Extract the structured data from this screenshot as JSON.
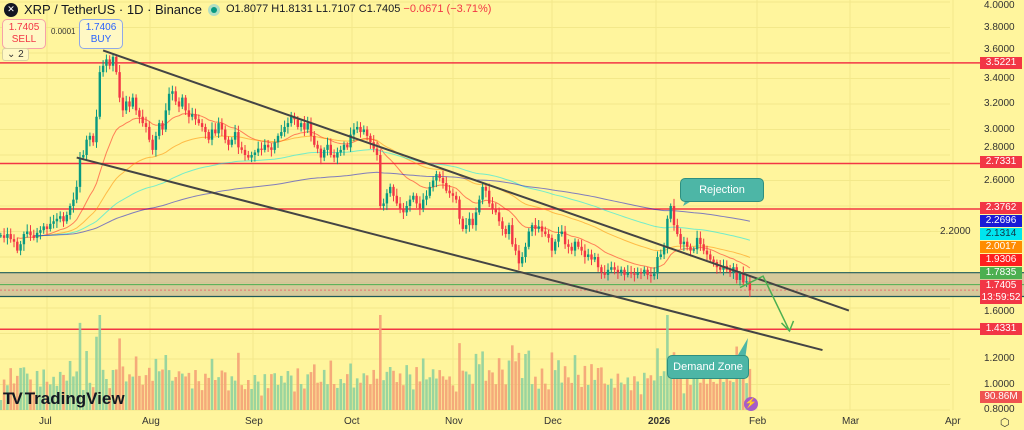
{
  "header": {
    "symbol": "XRP / TetherUS · 1D · Binance",
    "open": "O1.8077",
    "high": "H1.8131",
    "low": "L1.7107",
    "close": "C1.7405",
    "change": "−0.0671 (−3.71%)"
  },
  "trade": {
    "sell_price": "1.7405",
    "sell_label": "SELL",
    "spread": "0.0001",
    "buy_price": "1.7406",
    "buy_label": "BUY"
  },
  "indicators_toggle": "2",
  "branding": "TradingView",
  "annotations": {
    "rejection": "Rejection",
    "demand_zone": "Demand Zone"
  },
  "colors": {
    "up": "#089981",
    "down": "#f23645",
    "background": "#fff59d",
    "levels": "#f23645",
    "zone": "#c8b99a",
    "callout": "#4db6a6"
  },
  "chart_data": {
    "type": "candlestick",
    "title": "XRP / TetherUS · 1D · Binance",
    "start_date": "2025-06-17",
    "interval": "1D",
    "closes": [
      2.17,
      2.15,
      2.18,
      2.14,
      2.12,
      2.05,
      2.1,
      2.18,
      2.2,
      2.17,
      2.15,
      2.19,
      2.21,
      2.24,
      2.22,
      2.26,
      2.28,
      2.3,
      2.32,
      2.28,
      2.33,
      2.4,
      2.45,
      2.55,
      2.78,
      2.8,
      2.92,
      2.95,
      2.9,
      3.1,
      3.45,
      3.5,
      3.55,
      3.5,
      3.57,
      3.45,
      3.25,
      3.15,
      3.22,
      3.18,
      3.25,
      3.15,
      3.1,
      3.05,
      3.02,
      2.92,
      2.84,
      2.95,
      3.05,
      3.0,
      3.15,
      3.28,
      3.3,
      3.22,
      3.18,
      3.25,
      3.15,
      3.1,
      3.12,
      3.08,
      3.05,
      3.02,
      2.98,
      2.92,
      3.0,
      2.97,
      3.05,
      3.0,
      2.92,
      2.88,
      2.92,
      2.98,
      2.86,
      2.84,
      2.8,
      2.78,
      2.8,
      2.82,
      2.85,
      2.84,
      2.88,
      2.86,
      2.84,
      2.9,
      2.95,
      2.98,
      3.02,
      3.05,
      3.1,
      3.08,
      3.02,
      3.05,
      3.0,
      3.05,
      2.95,
      2.88,
      2.85,
      2.78,
      2.84,
      2.88,
      2.8,
      2.78,
      2.82,
      2.84,
      2.88,
      2.86,
      2.96,
      3.0,
      3.02,
      2.98,
      3.0,
      2.95,
      2.9,
      2.85,
      2.8,
      2.4,
      2.42,
      2.5,
      2.55,
      2.48,
      2.42,
      2.38,
      2.35,
      2.4,
      2.45,
      2.48,
      2.42,
      2.38,
      2.45,
      2.48,
      2.55,
      2.6,
      2.65,
      2.62,
      2.58,
      2.52,
      2.5,
      2.48,
      2.45,
      2.3,
      2.22,
      2.25,
      2.3,
      2.25,
      2.35,
      2.45,
      2.55,
      2.52,
      2.42,
      2.38,
      2.35,
      2.28,
      2.22,
      2.18,
      2.25,
      2.1,
      2.05,
      1.95,
      2.0,
      2.08,
      2.2,
      2.25,
      2.22,
      2.24,
      2.2,
      2.18,
      2.15,
      2.05,
      2.12,
      2.18,
      2.2,
      2.1,
      2.08,
      2.05,
      2.12,
      2.08,
      2.05,
      2.0,
      2.02,
      1.98,
      2.0,
      1.92,
      1.88,
      1.86,
      1.9,
      1.92,
      1.9,
      1.88,
      1.9,
      1.86,
      1.88,
      1.87,
      1.86,
      1.88,
      1.87,
      1.9,
      1.86,
      1.85,
      1.87,
      2.0,
      2.02,
      2.08,
      2.3,
      2.4,
      2.25,
      2.18,
      2.1,
      2.12,
      2.08,
      2.05,
      2.06,
      2.15,
      2.1,
      2.05,
      2.02,
      1.98,
      1.96,
      1.92,
      1.9,
      1.93,
      1.9,
      1.88,
      1.92,
      1.82,
      1.87,
      1.8,
      1.81,
      1.74
    ],
    "moving_averages": [
      {
        "period": 20,
        "color": "#ff1f1f",
        "last": "1.9306"
      },
      {
        "period": 50,
        "color": "#ff8c00",
        "last": "2.0017"
      },
      {
        "period": 100,
        "color": "#00e5ee",
        "last": "2.1314"
      },
      {
        "period": 200,
        "color": "#1a1ad6",
        "last": "2.2696"
      }
    ],
    "horizontal_levels": [
      "3.5221",
      "2.7331",
      "2.3762",
      "1.4331"
    ],
    "zone": {
      "top": 1.877,
      "mid": "1.7835",
      "bottom": 1.69
    },
    "current_price": "1.7405",
    "countdown": "13:59:52",
    "volume_last": "90.86M",
    "channel": {
      "upper": [
        [
          "2025-07-18",
          3.62
        ],
        [
          "2026-03-01",
          1.58
        ]
      ],
      "lower": [
        [
          "2025-07-10",
          2.78
        ],
        [
          "2026-02-21",
          1.27
        ]
      ]
    },
    "projection": [
      [
        "2026-01-27",
        1.76
      ],
      [
        "2026-02-03",
        1.85
      ],
      [
        "2026-02-11",
        1.42
      ]
    ],
    "y_ticks": [
      "4.0000",
      "3.8000",
      "3.6000",
      "3.4000",
      "3.2000",
      "3.0000",
      "2.8000",
      "2.6000",
      "2.2000",
      "1.6000",
      "1.2000",
      "1.0000",
      "0.8000"
    ],
    "x_ticks": [
      "Jul",
      "Aug",
      "Sep",
      "Oct",
      "Nov",
      "Dec",
      "2026",
      "Feb",
      "Mar",
      "Apr"
    ],
    "ylim": [
      0.78,
      4.0
    ],
    "grid": true
  }
}
